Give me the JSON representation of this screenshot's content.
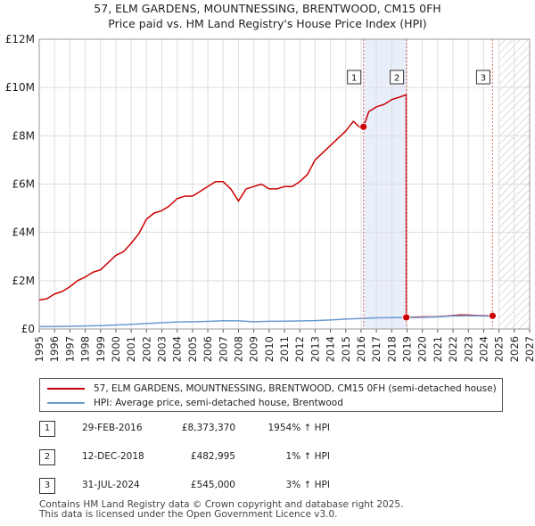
{
  "chart_data": {
    "type": "line",
    "title": "57, ELM GARDENS, MOUNTNESSING, BRENTWOOD, CM15 0FH",
    "subtitle": "Price paid vs. HM Land Registry's House Price Index (HPI)",
    "xlim": [
      1995,
      2027
    ],
    "ylim": [
      0,
      12000000
    ],
    "x_ticks": [
      "1995",
      "1996",
      "1997",
      "1998",
      "1999",
      "2000",
      "2001",
      "2002",
      "2003",
      "2004",
      "2005",
      "2006",
      "2007",
      "2008",
      "2009",
      "2010",
      "2011",
      "2012",
      "2013",
      "2014",
      "2015",
      "2016",
      "2017",
      "2018",
      "2019",
      "2020",
      "2021",
      "2022",
      "2023",
      "2024",
      "2025",
      "2026",
      "2027"
    ],
    "y_ticks": [
      {
        "value": 0,
        "label": "£0"
      },
      {
        "value": 2000000,
        "label": "£2M"
      },
      {
        "value": 4000000,
        "label": "£4M"
      },
      {
        "value": 6000000,
        "label": "£6M"
      },
      {
        "value": 8000000,
        "label": "£8M"
      },
      {
        "value": 10000000,
        "label": "£10M"
      },
      {
        "value": 12000000,
        "label": "£12M"
      }
    ],
    "grid": true,
    "shaded_period": [
      2016.16,
      2018.95
    ],
    "hatched_after": 2025.0,
    "series": [
      {
        "name": "57, ELM GARDENS, MOUNTNESSING, BRENTWOOD, CM15 0FH (semi-detached house)",
        "color": "#cc0000",
        "x": [
          1995.0,
          1995.5,
          1996.0,
          1996.5,
          1997.0,
          1997.5,
          1998.0,
          1998.5,
          1999.0,
          1999.5,
          2000.0,
          2000.5,
          2001.0,
          2001.5,
          2002.0,
          2002.5,
          2003.0,
          2003.5,
          2004.0,
          2004.5,
          2005.0,
          2005.5,
          2006.0,
          2006.5,
          2007.0,
          2007.5,
          2008.0,
          2008.5,
          2009.0,
          2009.5,
          2010.0,
          2010.5,
          2011.0,
          2011.5,
          2012.0,
          2012.5,
          2013.0,
          2013.5,
          2014.0,
          2014.5,
          2015.0,
          2015.5,
          2016.0,
          2016.16,
          2016.5,
          2017.0,
          2017.5,
          2018.0,
          2018.5,
          2018.94,
          2018.95,
          2019.5,
          2020.0,
          2020.5,
          2021.0,
          2021.5,
          2022.0,
          2022.5,
          2023.0,
          2023.5,
          2024.0,
          2024.58
        ],
        "values": [
          1200000,
          1250000,
          1450000,
          1550000,
          1750000,
          2000000,
          2150000,
          2350000,
          2450000,
          2750000,
          3050000,
          3200000,
          3550000,
          3950000,
          4550000,
          4800000,
          4900000,
          5100000,
          5400000,
          5500000,
          5500000,
          5700000,
          5900000,
          6100000,
          6100000,
          5800000,
          5300000,
          5800000,
          5900000,
          6000000,
          5800000,
          5800000,
          5900000,
          5900000,
          6100000,
          6400000,
          7000000,
          7300000,
          7600000,
          7900000,
          8200000,
          8600000,
          8300000,
          8373370,
          9000000,
          9200000,
          9300000,
          9500000,
          9600000,
          9700000,
          482995,
          490000,
          500000,
          505000,
          510000,
          530000,
          560000,
          580000,
          575000,
          560000,
          550000,
          545000
        ]
      },
      {
        "name": "HPI: Average price, semi-detached house, Brentwood",
        "color": "#6b9bd1",
        "x": [
          1995,
          1996,
          1997,
          1998,
          1999,
          2000,
          2001,
          2002,
          2003,
          2004,
          2005,
          2006,
          2007,
          2008,
          2009,
          2010,
          2011,
          2012,
          2013,
          2014,
          2015,
          2016,
          2017,
          2018,
          2019,
          2020,
          2021,
          2022,
          2023,
          2024,
          2024.58
        ],
        "values": [
          95000,
          100000,
          110000,
          125000,
          140000,
          165000,
          190000,
          225000,
          260000,
          290000,
          300000,
          315000,
          340000,
          335000,
          300000,
          320000,
          325000,
          330000,
          345000,
          375000,
          410000,
          435000,
          460000,
          470000,
          475000,
          480000,
          500000,
          540000,
          550000,
          535000,
          530000
        ]
      }
    ],
    "markers": [
      {
        "label": "1",
        "x": 2016.16,
        "y": 8373370
      },
      {
        "label": "2",
        "x": 2018.95,
        "y": 482995
      },
      {
        "label": "3",
        "x": 2024.58,
        "y": 545000
      }
    ]
  },
  "legend": {
    "items": [
      {
        "label": "57, ELM GARDENS, MOUNTNESSING, BRENTWOOD, CM15 0FH (semi-detached house)",
        "color": "#cc0000"
      },
      {
        "label": "HPI: Average price, semi-detached house, Brentwood",
        "color": "#6b9bd1"
      }
    ]
  },
  "sales": [
    {
      "num": "1",
      "date": "29-FEB-2016",
      "price": "£8,373,370",
      "hpi": "1954% ↑ HPI"
    },
    {
      "num": "2",
      "date": "12-DEC-2018",
      "price": "£482,995",
      "hpi": "1% ↑ HPI"
    },
    {
      "num": "3",
      "date": "31-JUL-2024",
      "price": "£545,000",
      "hpi": "3% ↑ HPI"
    }
  ],
  "footer": {
    "line1": "Contains HM Land Registry data © Crown copyright and database right 2025.",
    "line2": "This data is licensed under the Open Government Licence v3.0."
  }
}
